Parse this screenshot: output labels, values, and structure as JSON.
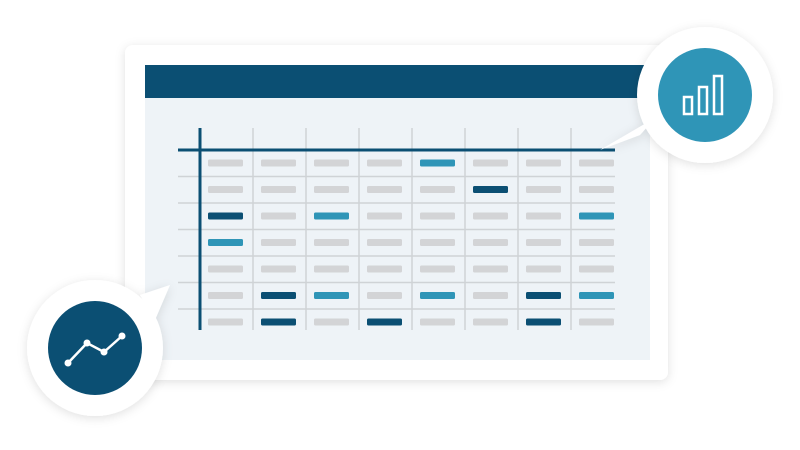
{
  "colors": {
    "dark": "#0b4f73",
    "accent": "#2f95b7",
    "neutral": "#d3d4d6",
    "panel": "#eef3f7",
    "gridline": "#cfd3d6",
    "card": "#ffffff"
  },
  "grid": {
    "rows": [
      [
        "g",
        "g",
        "g",
        "g",
        "l",
        "g",
        "g",
        "g"
      ],
      [
        "g",
        "g",
        "g",
        "g",
        "g",
        "d",
        "g",
        "g"
      ],
      [
        "d",
        "g",
        "l",
        "g",
        "g",
        "g",
        "g",
        "l"
      ],
      [
        "l",
        "g",
        "g",
        "g",
        "g",
        "g",
        "g",
        "g"
      ],
      [
        "g",
        "g",
        "g",
        "g",
        "g",
        "g",
        "g",
        "g"
      ],
      [
        "g",
        "d",
        "l",
        "g",
        "l",
        "g",
        "d",
        "l"
      ],
      [
        "g",
        "d",
        "g",
        "d",
        "g",
        "g",
        "d",
        "g"
      ]
    ]
  },
  "badges": {
    "top_right": {
      "icon": "bar-chart-icon"
    },
    "bottom_left": {
      "icon": "line-chart-icon"
    }
  }
}
